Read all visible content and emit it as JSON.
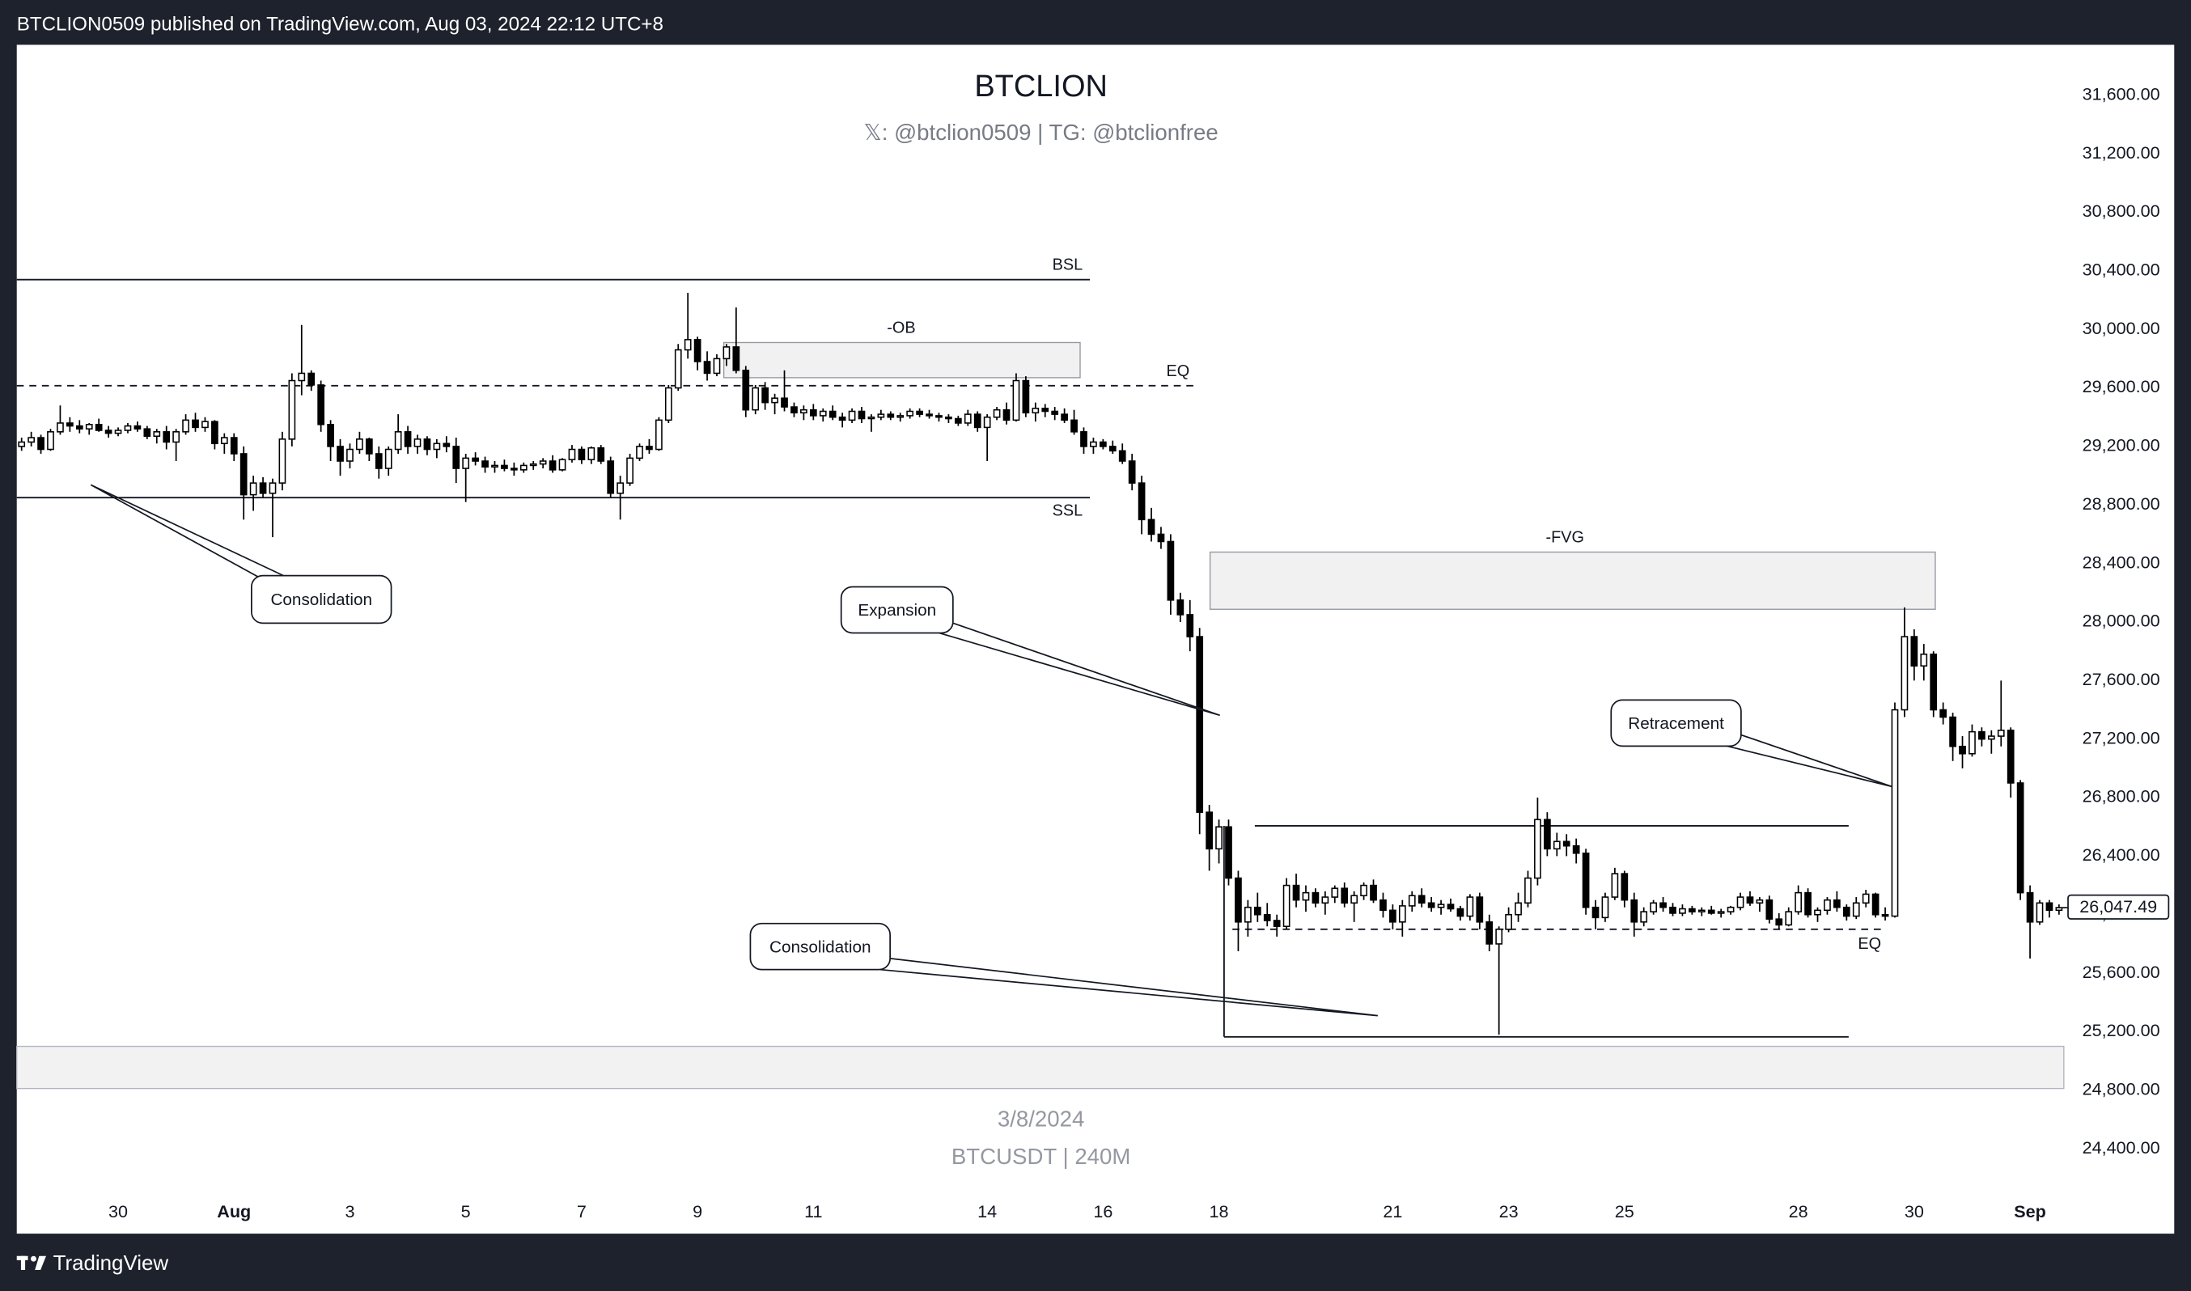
{
  "header": "BTCLION0509 published on TradingView.com, Aug 03, 2024 22:12 UTC+8",
  "footer": "TradingView",
  "chart_data": {
    "type": "candlestick",
    "title": "BTCLION",
    "subtitle": "𝕏: @btclion0509 | TG: @btclionfree",
    "watermark_date": "3/8/2024",
    "watermark_symbol": "BTCUSDT | 240M",
    "xlim": [
      -0.5,
      211.5
    ],
    "ylim": [
      23820,
      31945
    ],
    "xticks": [
      {
        "value": 10,
        "label": "30"
      },
      {
        "value": 22,
        "label": "Aug"
      },
      {
        "value": 34,
        "label": "3"
      },
      {
        "value": 46,
        "label": "5"
      },
      {
        "value": 58,
        "label": "7"
      },
      {
        "value": 70,
        "label": "9"
      },
      {
        "value": 82,
        "label": "11"
      },
      {
        "value": 100,
        "label": "14"
      },
      {
        "value": 112,
        "label": "16"
      },
      {
        "value": 124,
        "label": "18"
      },
      {
        "value": 142,
        "label": "21"
      },
      {
        "value": 154,
        "label": "23"
      },
      {
        "value": 166,
        "label": "25"
      },
      {
        "value": 184,
        "label": "28"
      },
      {
        "value": 196,
        "label": "30"
      },
      {
        "value": 208,
        "label": "Sep"
      }
    ],
    "yticks": [
      {
        "value": 31600,
        "label": "31,600.00"
      },
      {
        "value": 31200,
        "label": "31,200.00"
      },
      {
        "value": 30800,
        "label": "30,800.00"
      },
      {
        "value": 30400,
        "label": "30,400.00"
      },
      {
        "value": 30000,
        "label": "30,000.00"
      },
      {
        "value": 29600,
        "label": "29,600.00"
      },
      {
        "value": 29200,
        "label": "29,200.00"
      },
      {
        "value": 28800,
        "label": "28,800.00"
      },
      {
        "value": 28400,
        "label": "28,400.00"
      },
      {
        "value": 28000,
        "label": "28,000.00"
      },
      {
        "value": 27600,
        "label": "27,600.00"
      },
      {
        "value": 27200,
        "label": "27,200.00"
      },
      {
        "value": 26800,
        "label": "26,800.00"
      },
      {
        "value": 26400,
        "label": "26,400.00"
      },
      {
        "value": 26000,
        "label": "26,000.00"
      },
      {
        "value": 25600,
        "label": "25,600.00"
      },
      {
        "value": 25200,
        "label": "25,200.00"
      },
      {
        "value": 24800,
        "label": "24,800.00"
      },
      {
        "value": 24400,
        "label": "24,400.00"
      }
    ],
    "last_price": {
      "value": 26047.49,
      "label": "26,047.49"
    },
    "levels": [
      {
        "label": "BSL",
        "value": 30340
      },
      {
        "label": "EQ",
        "value": 29615,
        "dashed": true
      },
      {
        "label": "SSL",
        "value": 28850
      },
      {
        "label": "EQ",
        "value": 25900,
        "dashed": true
      }
    ],
    "zones": [
      {
        "label": "-OB",
        "top": 29910,
        "bottom": 29670
      },
      {
        "label": "-FVG",
        "top": 28478,
        "bottom": 28087
      }
    ],
    "range": {
      "top": 26607,
      "bottom": 25165
    },
    "band": {
      "top": 25100,
      "bottom": 24812
    },
    "callouts": [
      "Consolidation",
      "Expansion",
      "Retracement",
      "Consolidation"
    ],
    "ohlc": [
      [
        29200,
        29260,
        29170,
        29230
      ],
      [
        29230,
        29300,
        29200,
        29260
      ],
      [
        29260,
        29280,
        29150,
        29180
      ],
      [
        29180,
        29320,
        29170,
        29300
      ],
      [
        29300,
        29480,
        29280,
        29360
      ],
      [
        29360,
        29400,
        29300,
        29340
      ],
      [
        29340,
        29380,
        29290,
        29320
      ],
      [
        29320,
        29360,
        29280,
        29350
      ],
      [
        29350,
        29390,
        29300,
        29310
      ],
      [
        29310,
        29340,
        29260,
        29290
      ],
      [
        29290,
        29330,
        29270,
        29310
      ],
      [
        29310,
        29360,
        29290,
        29340
      ],
      [
        29340,
        29370,
        29300,
        29320
      ],
      [
        29320,
        29340,
        29250,
        29270
      ],
      [
        29270,
        29320,
        29220,
        29300
      ],
      [
        29300,
        29340,
        29180,
        29230
      ],
      [
        29230,
        29320,
        29100,
        29300
      ],
      [
        29300,
        29420,
        29280,
        29380
      ],
      [
        29380,
        29430,
        29300,
        29330
      ],
      [
        29330,
        29400,
        29300,
        29370
      ],
      [
        29370,
        29380,
        29180,
        29220
      ],
      [
        29220,
        29290,
        29150,
        29260
      ],
      [
        29260,
        29290,
        29100,
        29150
      ],
      [
        29150,
        29200,
        28700,
        28870
      ],
      [
        28870,
        29000,
        28760,
        28950
      ],
      [
        28950,
        28990,
        28850,
        28880
      ],
      [
        28880,
        28980,
        28580,
        28950
      ],
      [
        28950,
        29300,
        28900,
        29250
      ],
      [
        29250,
        29700,
        29200,
        29650
      ],
      [
        29650,
        30030,
        29550,
        29700
      ],
      [
        29700,
        29720,
        29580,
        29620
      ],
      [
        29620,
        29650,
        29300,
        29350
      ],
      [
        29350,
        29380,
        29100,
        29200
      ],
      [
        29200,
        29250,
        29000,
        29100
      ],
      [
        29100,
        29220,
        29050,
        29180
      ],
      [
        29180,
        29300,
        29150,
        29250
      ],
      [
        29250,
        29260,
        29100,
        29150
      ],
      [
        29150,
        29200,
        28980,
        29050
      ],
      [
        29050,
        29200,
        29000,
        29180
      ],
      [
        29180,
        29420,
        29150,
        29300
      ],
      [
        29300,
        29340,
        29150,
        29200
      ],
      [
        29200,
        29280,
        29150,
        29250
      ],
      [
        29250,
        29270,
        29140,
        29180
      ],
      [
        29180,
        29250,
        29120,
        29220
      ],
      [
        29220,
        29270,
        29160,
        29200
      ],
      [
        29200,
        29260,
        28950,
        29050
      ],
      [
        29050,
        29150,
        28820,
        29120
      ],
      [
        29120,
        29160,
        29070,
        29100
      ],
      [
        29100,
        29130,
        29020,
        29060
      ],
      [
        29060,
        29100,
        29020,
        29070
      ],
      [
        29070,
        29110,
        29030,
        29050
      ],
      [
        29050,
        29090,
        29000,
        29040
      ],
      [
        29040,
        29090,
        29020,
        29070
      ],
      [
        29070,
        29100,
        29040,
        29080
      ],
      [
        29080,
        29120,
        29050,
        29100
      ],
      [
        29100,
        29140,
        29020,
        29040
      ],
      [
        29040,
        29120,
        29030,
        29110
      ],
      [
        29110,
        29210,
        29090,
        29180
      ],
      [
        29180,
        29200,
        29080,
        29110
      ],
      [
        29110,
        29200,
        29080,
        29190
      ],
      [
        29190,
        29210,
        29080,
        29100
      ],
      [
        29100,
        29130,
        28850,
        28880
      ],
      [
        28880,
        29000,
        28700,
        28950
      ],
      [
        28950,
        29150,
        28930,
        29120
      ],
      [
        29120,
        29220,
        29100,
        29200
      ],
      [
        29200,
        29250,
        29150,
        29180
      ],
      [
        29180,
        29400,
        29170,
        29380
      ],
      [
        29380,
        29620,
        29360,
        29600
      ],
      [
        29600,
        29900,
        29580,
        29860
      ],
      [
        29860,
        30250,
        29800,
        29930
      ],
      [
        29930,
        29950,
        29720,
        29780
      ],
      [
        29780,
        29850,
        29650,
        29700
      ],
      [
        29700,
        29830,
        29680,
        29800
      ],
      [
        29800,
        29900,
        29750,
        29880
      ],
      [
        29880,
        30150,
        29700,
        29720
      ],
      [
        29720,
        29750,
        29400,
        29450
      ],
      [
        29450,
        29620,
        29420,
        29600
      ],
      [
        29600,
        29640,
        29450,
        29500
      ],
      [
        29500,
        29560,
        29420,
        29530
      ],
      [
        29530,
        29720,
        29440,
        29470
      ],
      [
        29470,
        29500,
        29400,
        29430
      ],
      [
        29430,
        29480,
        29380,
        29450
      ],
      [
        29450,
        29490,
        29380,
        29410
      ],
      [
        29410,
        29460,
        29370,
        29440
      ],
      [
        29440,
        29480,
        29380,
        29400
      ],
      [
        29400,
        29430,
        29330,
        29380
      ],
      [
        29380,
        29460,
        29360,
        29440
      ],
      [
        29440,
        29470,
        29360,
        29390
      ],
      [
        29390,
        29420,
        29300,
        29400
      ],
      [
        29400,
        29450,
        29380,
        29420
      ],
      [
        29420,
        29440,
        29380,
        29400
      ],
      [
        29400,
        29430,
        29370,
        29410
      ],
      [
        29410,
        29460,
        29390,
        29440
      ],
      [
        29440,
        29460,
        29400,
        29420
      ],
      [
        29420,
        29450,
        29390,
        29410
      ],
      [
        29410,
        29430,
        29370,
        29400
      ],
      [
        29400,
        29420,
        29360,
        29390
      ],
      [
        29390,
        29410,
        29340,
        29360
      ],
      [
        29360,
        29450,
        29340,
        29420
      ],
      [
        29420,
        29440,
        29300,
        29330
      ],
      [
        29330,
        29420,
        29100,
        29400
      ],
      [
        29400,
        29470,
        29380,
        29450
      ],
      [
        29450,
        29500,
        29350,
        29380
      ],
      [
        29380,
        29700,
        29370,
        29650
      ],
      [
        29650,
        29680,
        29400,
        29430
      ],
      [
        29430,
        29500,
        29370,
        29460
      ],
      [
        29460,
        29490,
        29400,
        29440
      ],
      [
        29440,
        29470,
        29380,
        29420
      ],
      [
        29420,
        29460,
        29360,
        29380
      ],
      [
        29380,
        29450,
        29280,
        29300
      ],
      [
        29300,
        29330,
        29150,
        29200
      ],
      [
        29200,
        29260,
        29150,
        29230
      ],
      [
        29230,
        29250,
        29180,
        29200
      ],
      [
        29200,
        29240,
        29150,
        29170
      ],
      [
        29170,
        29220,
        29080,
        29100
      ],
      [
        29100,
        29150,
        28900,
        28950
      ],
      [
        28950,
        29000,
        28600,
        28700
      ],
      [
        28700,
        28780,
        28550,
        28600
      ],
      [
        28600,
        28650,
        28500,
        28550
      ],
      [
        28550,
        28600,
        28050,
        28150
      ],
      [
        28150,
        28200,
        28000,
        28050
      ],
      [
        28050,
        28150,
        27800,
        27900
      ],
      [
        27900,
        27960,
        26550,
        26700
      ],
      [
        26700,
        26750,
        26300,
        26450
      ],
      [
        26450,
        26650,
        26350,
        26600
      ],
      [
        26600,
        26650,
        26200,
        26250
      ],
      [
        26250,
        26300,
        25750,
        25950
      ],
      [
        25950,
        26100,
        25850,
        26050
      ],
      [
        26050,
        26150,
        25950,
        26000
      ],
      [
        26000,
        26080,
        25920,
        25960
      ],
      [
        25960,
        26000,
        25850,
        25920
      ],
      [
        25920,
        26250,
        25900,
        26200
      ],
      [
        26200,
        26280,
        26050,
        26100
      ],
      [
        26100,
        26200,
        26020,
        26150
      ],
      [
        26150,
        26180,
        26050,
        26080
      ],
      [
        26080,
        26160,
        26000,
        26120
      ],
      [
        26120,
        26200,
        26080,
        26180
      ],
      [
        26180,
        26220,
        26050,
        26080
      ],
      [
        26080,
        26160,
        25950,
        26130
      ],
      [
        26130,
        26220,
        26100,
        26200
      ],
      [
        26200,
        26240,
        26080,
        26100
      ],
      [
        26100,
        26150,
        25980,
        26030
      ],
      [
        26030,
        26070,
        25900,
        25950
      ],
      [
        25950,
        26100,
        25850,
        26060
      ],
      [
        26060,
        26160,
        26020,
        26130
      ],
      [
        26130,
        26180,
        26050,
        26080
      ],
      [
        26080,
        26120,
        26020,
        26050
      ],
      [
        26050,
        26100,
        26000,
        26070
      ],
      [
        26070,
        26110,
        26020,
        26040
      ],
      [
        26040,
        26060,
        25960,
        25990
      ],
      [
        25990,
        26140,
        25960,
        26120
      ],
      [
        26120,
        26150,
        25900,
        25950
      ],
      [
        25950,
        26000,
        25750,
        25800
      ],
      [
        25800,
        25920,
        25180,
        25900
      ],
      [
        25900,
        26050,
        25880,
        26000
      ],
      [
        26000,
        26150,
        25950,
        26080
      ],
      [
        26080,
        26300,
        26050,
        26250
      ],
      [
        26250,
        26800,
        26200,
        26650
      ],
      [
        26650,
        26700,
        26400,
        26450
      ],
      [
        26450,
        26560,
        26400,
        26500
      ],
      [
        26500,
        26550,
        26400,
        26470
      ],
      [
        26470,
        26520,
        26350,
        26420
      ],
      [
        26420,
        26450,
        26000,
        26050
      ],
      [
        26050,
        26100,
        25900,
        25980
      ],
      [
        25980,
        26150,
        25950,
        26120
      ],
      [
        26120,
        26320,
        26100,
        26280
      ],
      [
        26280,
        26300,
        26050,
        26100
      ],
      [
        26100,
        26150,
        25850,
        25950
      ],
      [
        25950,
        26050,
        25920,
        26020
      ],
      [
        26020,
        26100,
        26000,
        26080
      ],
      [
        26080,
        26120,
        26020,
        26050
      ],
      [
        26050,
        26080,
        25990,
        26010
      ],
      [
        26010,
        26070,
        25990,
        26040
      ],
      [
        26040,
        26060,
        26000,
        26020
      ],
      [
        26020,
        26050,
        25990,
        26030
      ],
      [
        26030,
        26060,
        26000,
        26010
      ],
      [
        26010,
        26040,
        25980,
        26020
      ],
      [
        26020,
        26060,
        26000,
        26050
      ],
      [
        26050,
        26150,
        26030,
        26120
      ],
      [
        26120,
        26160,
        26060,
        26080
      ],
      [
        26080,
        26120,
        26020,
        26100
      ],
      [
        26100,
        26130,
        25940,
        25970
      ],
      [
        25970,
        26010,
        25900,
        25930
      ],
      [
        25930,
        26050,
        25920,
        26020
      ],
      [
        26020,
        26200,
        26000,
        26150
      ],
      [
        26150,
        26180,
        25980,
        26000
      ],
      [
        26000,
        26050,
        25950,
        26030
      ],
      [
        26030,
        26120,
        26000,
        26100
      ],
      [
        26100,
        26160,
        26020,
        26050
      ],
      [
        26050,
        26070,
        25960,
        25990
      ],
      [
        25990,
        26120,
        25970,
        26080
      ],
      [
        26080,
        26170,
        26050,
        26140
      ],
      [
        26140,
        26150,
        25980,
        26000
      ],
      [
        26000,
        26050,
        25960,
        25990
      ],
      [
        25990,
        27450,
        25980,
        27400
      ],
      [
        27400,
        28100,
        27350,
        27900
      ],
      [
        27900,
        27950,
        27600,
        27700
      ],
      [
        27700,
        27850,
        27600,
        27780
      ],
      [
        27780,
        27800,
        27350,
        27400
      ],
      [
        27400,
        27450,
        27300,
        27350
      ],
      [
        27350,
        27380,
        27050,
        27150
      ],
      [
        27150,
        27220,
        27000,
        27100
      ],
      [
        27100,
        27300,
        27080,
        27250
      ],
      [
        27250,
        27280,
        27150,
        27200
      ],
      [
        27200,
        27260,
        27100,
        27220
      ],
      [
        27220,
        27600,
        27150,
        27260
      ],
      [
        27260,
        27280,
        26800,
        26900
      ],
      [
        26900,
        26920,
        26100,
        26150
      ],
      [
        26150,
        26200,
        25700,
        25950
      ],
      [
        25950,
        26100,
        25930,
        26080
      ],
      [
        26080,
        26100,
        25980,
        26030
      ],
      [
        26030,
        26070,
        26000,
        26047.49
      ]
    ]
  }
}
